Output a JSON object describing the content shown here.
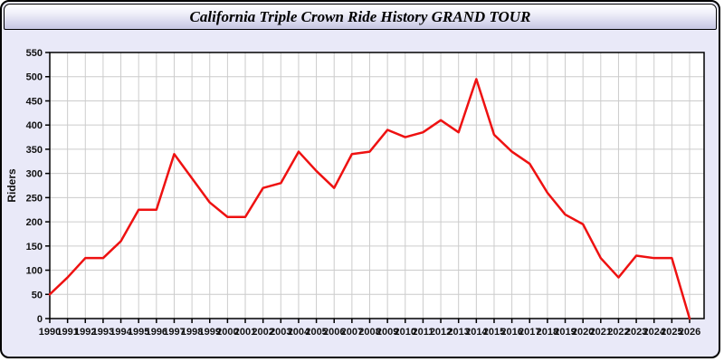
{
  "window": {
    "title": "California Triple Crown Ride History GRAND TOUR"
  },
  "chart_data": {
    "type": "line",
    "title": "California Triple Crown Ride History GRAND TOUR",
    "xlabel": "",
    "ylabel": "Riders",
    "x": [
      1990,
      1991,
      1992,
      1993,
      1994,
      1995,
      1996,
      1997,
      1998,
      1999,
      2000,
      2001,
      2002,
      2003,
      2004,
      2005,
      2006,
      2007,
      2008,
      2009,
      2010,
      2011,
      2012,
      2013,
      2014,
      2015,
      2016,
      2017,
      2018,
      2019,
      2020,
      2021,
      2022,
      2023,
      2024,
      2025,
      2026
    ],
    "series": [
      {
        "name": "Riders",
        "values": [
          50,
          85,
          125,
          125,
          160,
          225,
          225,
          340,
          290,
          240,
          210,
          210,
          270,
          280,
          345,
          305,
          270,
          340,
          345,
          390,
          375,
          385,
          410,
          385,
          495,
          380,
          345,
          320,
          260,
          215,
          195,
          125,
          85,
          130,
          125,
          125,
          0
        ]
      }
    ],
    "ylim": [
      0,
      550
    ],
    "yticks": [
      0,
      50,
      100,
      150,
      200,
      250,
      300,
      350,
      400,
      450,
      500,
      550
    ],
    "grid": true,
    "legend": "none"
  },
  "colors": {
    "line": "#ee1111",
    "plot_bg": "#ffffff",
    "grid": "#cccccc",
    "frame": "#000000",
    "tick_text": "#111111",
    "page_bg": "#e9e9f8"
  }
}
